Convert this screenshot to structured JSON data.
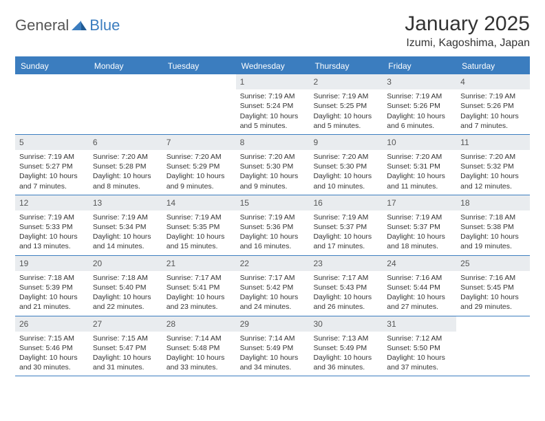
{
  "brand": {
    "part1": "General",
    "part2": "Blue"
  },
  "title": "January 2025",
  "location": "Izumi, Kagoshima, Japan",
  "colors": {
    "header_bar": "#3b7dbf",
    "daynum_bg": "#e9ecef",
    "text": "#333333",
    "logo_gray": "#555555"
  },
  "dow": [
    "Sunday",
    "Monday",
    "Tuesday",
    "Wednesday",
    "Thursday",
    "Friday",
    "Saturday"
  ],
  "weeks": [
    [
      {
        "n": "",
        "sr": "",
        "ss": "",
        "dl": ""
      },
      {
        "n": "",
        "sr": "",
        "ss": "",
        "dl": ""
      },
      {
        "n": "",
        "sr": "",
        "ss": "",
        "dl": ""
      },
      {
        "n": "1",
        "sr": "Sunrise: 7:19 AM",
        "ss": "Sunset: 5:24 PM",
        "dl": "Daylight: 10 hours and 5 minutes."
      },
      {
        "n": "2",
        "sr": "Sunrise: 7:19 AM",
        "ss": "Sunset: 5:25 PM",
        "dl": "Daylight: 10 hours and 5 minutes."
      },
      {
        "n": "3",
        "sr": "Sunrise: 7:19 AM",
        "ss": "Sunset: 5:26 PM",
        "dl": "Daylight: 10 hours and 6 minutes."
      },
      {
        "n": "4",
        "sr": "Sunrise: 7:19 AM",
        "ss": "Sunset: 5:26 PM",
        "dl": "Daylight: 10 hours and 7 minutes."
      }
    ],
    [
      {
        "n": "5",
        "sr": "Sunrise: 7:19 AM",
        "ss": "Sunset: 5:27 PM",
        "dl": "Daylight: 10 hours and 7 minutes."
      },
      {
        "n": "6",
        "sr": "Sunrise: 7:20 AM",
        "ss": "Sunset: 5:28 PM",
        "dl": "Daylight: 10 hours and 8 minutes."
      },
      {
        "n": "7",
        "sr": "Sunrise: 7:20 AM",
        "ss": "Sunset: 5:29 PM",
        "dl": "Daylight: 10 hours and 9 minutes."
      },
      {
        "n": "8",
        "sr": "Sunrise: 7:20 AM",
        "ss": "Sunset: 5:30 PM",
        "dl": "Daylight: 10 hours and 9 minutes."
      },
      {
        "n": "9",
        "sr": "Sunrise: 7:20 AM",
        "ss": "Sunset: 5:30 PM",
        "dl": "Daylight: 10 hours and 10 minutes."
      },
      {
        "n": "10",
        "sr": "Sunrise: 7:20 AM",
        "ss": "Sunset: 5:31 PM",
        "dl": "Daylight: 10 hours and 11 minutes."
      },
      {
        "n": "11",
        "sr": "Sunrise: 7:20 AM",
        "ss": "Sunset: 5:32 PM",
        "dl": "Daylight: 10 hours and 12 minutes."
      }
    ],
    [
      {
        "n": "12",
        "sr": "Sunrise: 7:19 AM",
        "ss": "Sunset: 5:33 PM",
        "dl": "Daylight: 10 hours and 13 minutes."
      },
      {
        "n": "13",
        "sr": "Sunrise: 7:19 AM",
        "ss": "Sunset: 5:34 PM",
        "dl": "Daylight: 10 hours and 14 minutes."
      },
      {
        "n": "14",
        "sr": "Sunrise: 7:19 AM",
        "ss": "Sunset: 5:35 PM",
        "dl": "Daylight: 10 hours and 15 minutes."
      },
      {
        "n": "15",
        "sr": "Sunrise: 7:19 AM",
        "ss": "Sunset: 5:36 PM",
        "dl": "Daylight: 10 hours and 16 minutes."
      },
      {
        "n": "16",
        "sr": "Sunrise: 7:19 AM",
        "ss": "Sunset: 5:37 PM",
        "dl": "Daylight: 10 hours and 17 minutes."
      },
      {
        "n": "17",
        "sr": "Sunrise: 7:19 AM",
        "ss": "Sunset: 5:37 PM",
        "dl": "Daylight: 10 hours and 18 minutes."
      },
      {
        "n": "18",
        "sr": "Sunrise: 7:18 AM",
        "ss": "Sunset: 5:38 PM",
        "dl": "Daylight: 10 hours and 19 minutes."
      }
    ],
    [
      {
        "n": "19",
        "sr": "Sunrise: 7:18 AM",
        "ss": "Sunset: 5:39 PM",
        "dl": "Daylight: 10 hours and 21 minutes."
      },
      {
        "n": "20",
        "sr": "Sunrise: 7:18 AM",
        "ss": "Sunset: 5:40 PM",
        "dl": "Daylight: 10 hours and 22 minutes."
      },
      {
        "n": "21",
        "sr": "Sunrise: 7:17 AM",
        "ss": "Sunset: 5:41 PM",
        "dl": "Daylight: 10 hours and 23 minutes."
      },
      {
        "n": "22",
        "sr": "Sunrise: 7:17 AM",
        "ss": "Sunset: 5:42 PM",
        "dl": "Daylight: 10 hours and 24 minutes."
      },
      {
        "n": "23",
        "sr": "Sunrise: 7:17 AM",
        "ss": "Sunset: 5:43 PM",
        "dl": "Daylight: 10 hours and 26 minutes."
      },
      {
        "n": "24",
        "sr": "Sunrise: 7:16 AM",
        "ss": "Sunset: 5:44 PM",
        "dl": "Daylight: 10 hours and 27 minutes."
      },
      {
        "n": "25",
        "sr": "Sunrise: 7:16 AM",
        "ss": "Sunset: 5:45 PM",
        "dl": "Daylight: 10 hours and 29 minutes."
      }
    ],
    [
      {
        "n": "26",
        "sr": "Sunrise: 7:15 AM",
        "ss": "Sunset: 5:46 PM",
        "dl": "Daylight: 10 hours and 30 minutes."
      },
      {
        "n": "27",
        "sr": "Sunrise: 7:15 AM",
        "ss": "Sunset: 5:47 PM",
        "dl": "Daylight: 10 hours and 31 minutes."
      },
      {
        "n": "28",
        "sr": "Sunrise: 7:14 AM",
        "ss": "Sunset: 5:48 PM",
        "dl": "Daylight: 10 hours and 33 minutes."
      },
      {
        "n": "29",
        "sr": "Sunrise: 7:14 AM",
        "ss": "Sunset: 5:49 PM",
        "dl": "Daylight: 10 hours and 34 minutes."
      },
      {
        "n": "30",
        "sr": "Sunrise: 7:13 AM",
        "ss": "Sunset: 5:49 PM",
        "dl": "Daylight: 10 hours and 36 minutes."
      },
      {
        "n": "31",
        "sr": "Sunrise: 7:12 AM",
        "ss": "Sunset: 5:50 PM",
        "dl": "Daylight: 10 hours and 37 minutes."
      },
      {
        "n": "",
        "sr": "",
        "ss": "",
        "dl": ""
      }
    ]
  ]
}
